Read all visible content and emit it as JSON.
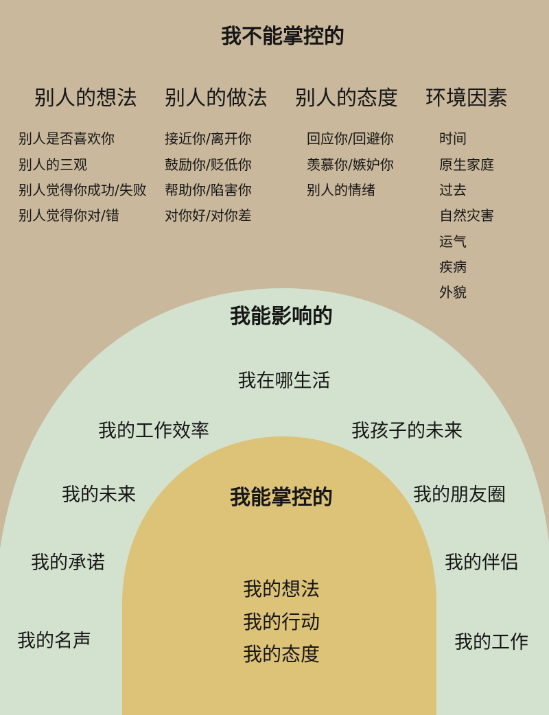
{
  "colors": {
    "outer_background": "#c9b89c",
    "middle_arch": "#d3e2cf",
    "inner_arch": "#dcc378",
    "text": "#161616"
  },
  "outer": {
    "title": "我不能掌控的",
    "columns": [
      {
        "heading": "别人的想法",
        "items": [
          "别人是否喜欢你",
          "别人的三观",
          "别人觉得你成功/失败",
          "别人觉得你对/错"
        ]
      },
      {
        "heading": "别人的做法",
        "items": [
          "接近你/离开你",
          "鼓励你/贬低你",
          "帮助你/陷害你",
          "对你好/对你差"
        ]
      },
      {
        "heading": "别人的态度",
        "items": [
          "回应你/回避你",
          "羡慕你/嫉妒你",
          "别人的情绪"
        ]
      },
      {
        "heading": "环境因素",
        "items": [
          "时间",
          "原生家庭",
          "过去",
          "自然灾害",
          "运气",
          "疾病",
          "外貌"
        ]
      }
    ]
  },
  "influence": {
    "title": "我能影响的",
    "items": [
      "我在哪生活",
      "我的工作效率",
      "我孩子的未来",
      "我的未来",
      "我的朋友圈",
      "我的承诺",
      "我的伴侣",
      "我的名声",
      "我的工作"
    ]
  },
  "control": {
    "title": "我能掌控的",
    "items": [
      "我的想法",
      "我的行动",
      "我的态度"
    ]
  }
}
